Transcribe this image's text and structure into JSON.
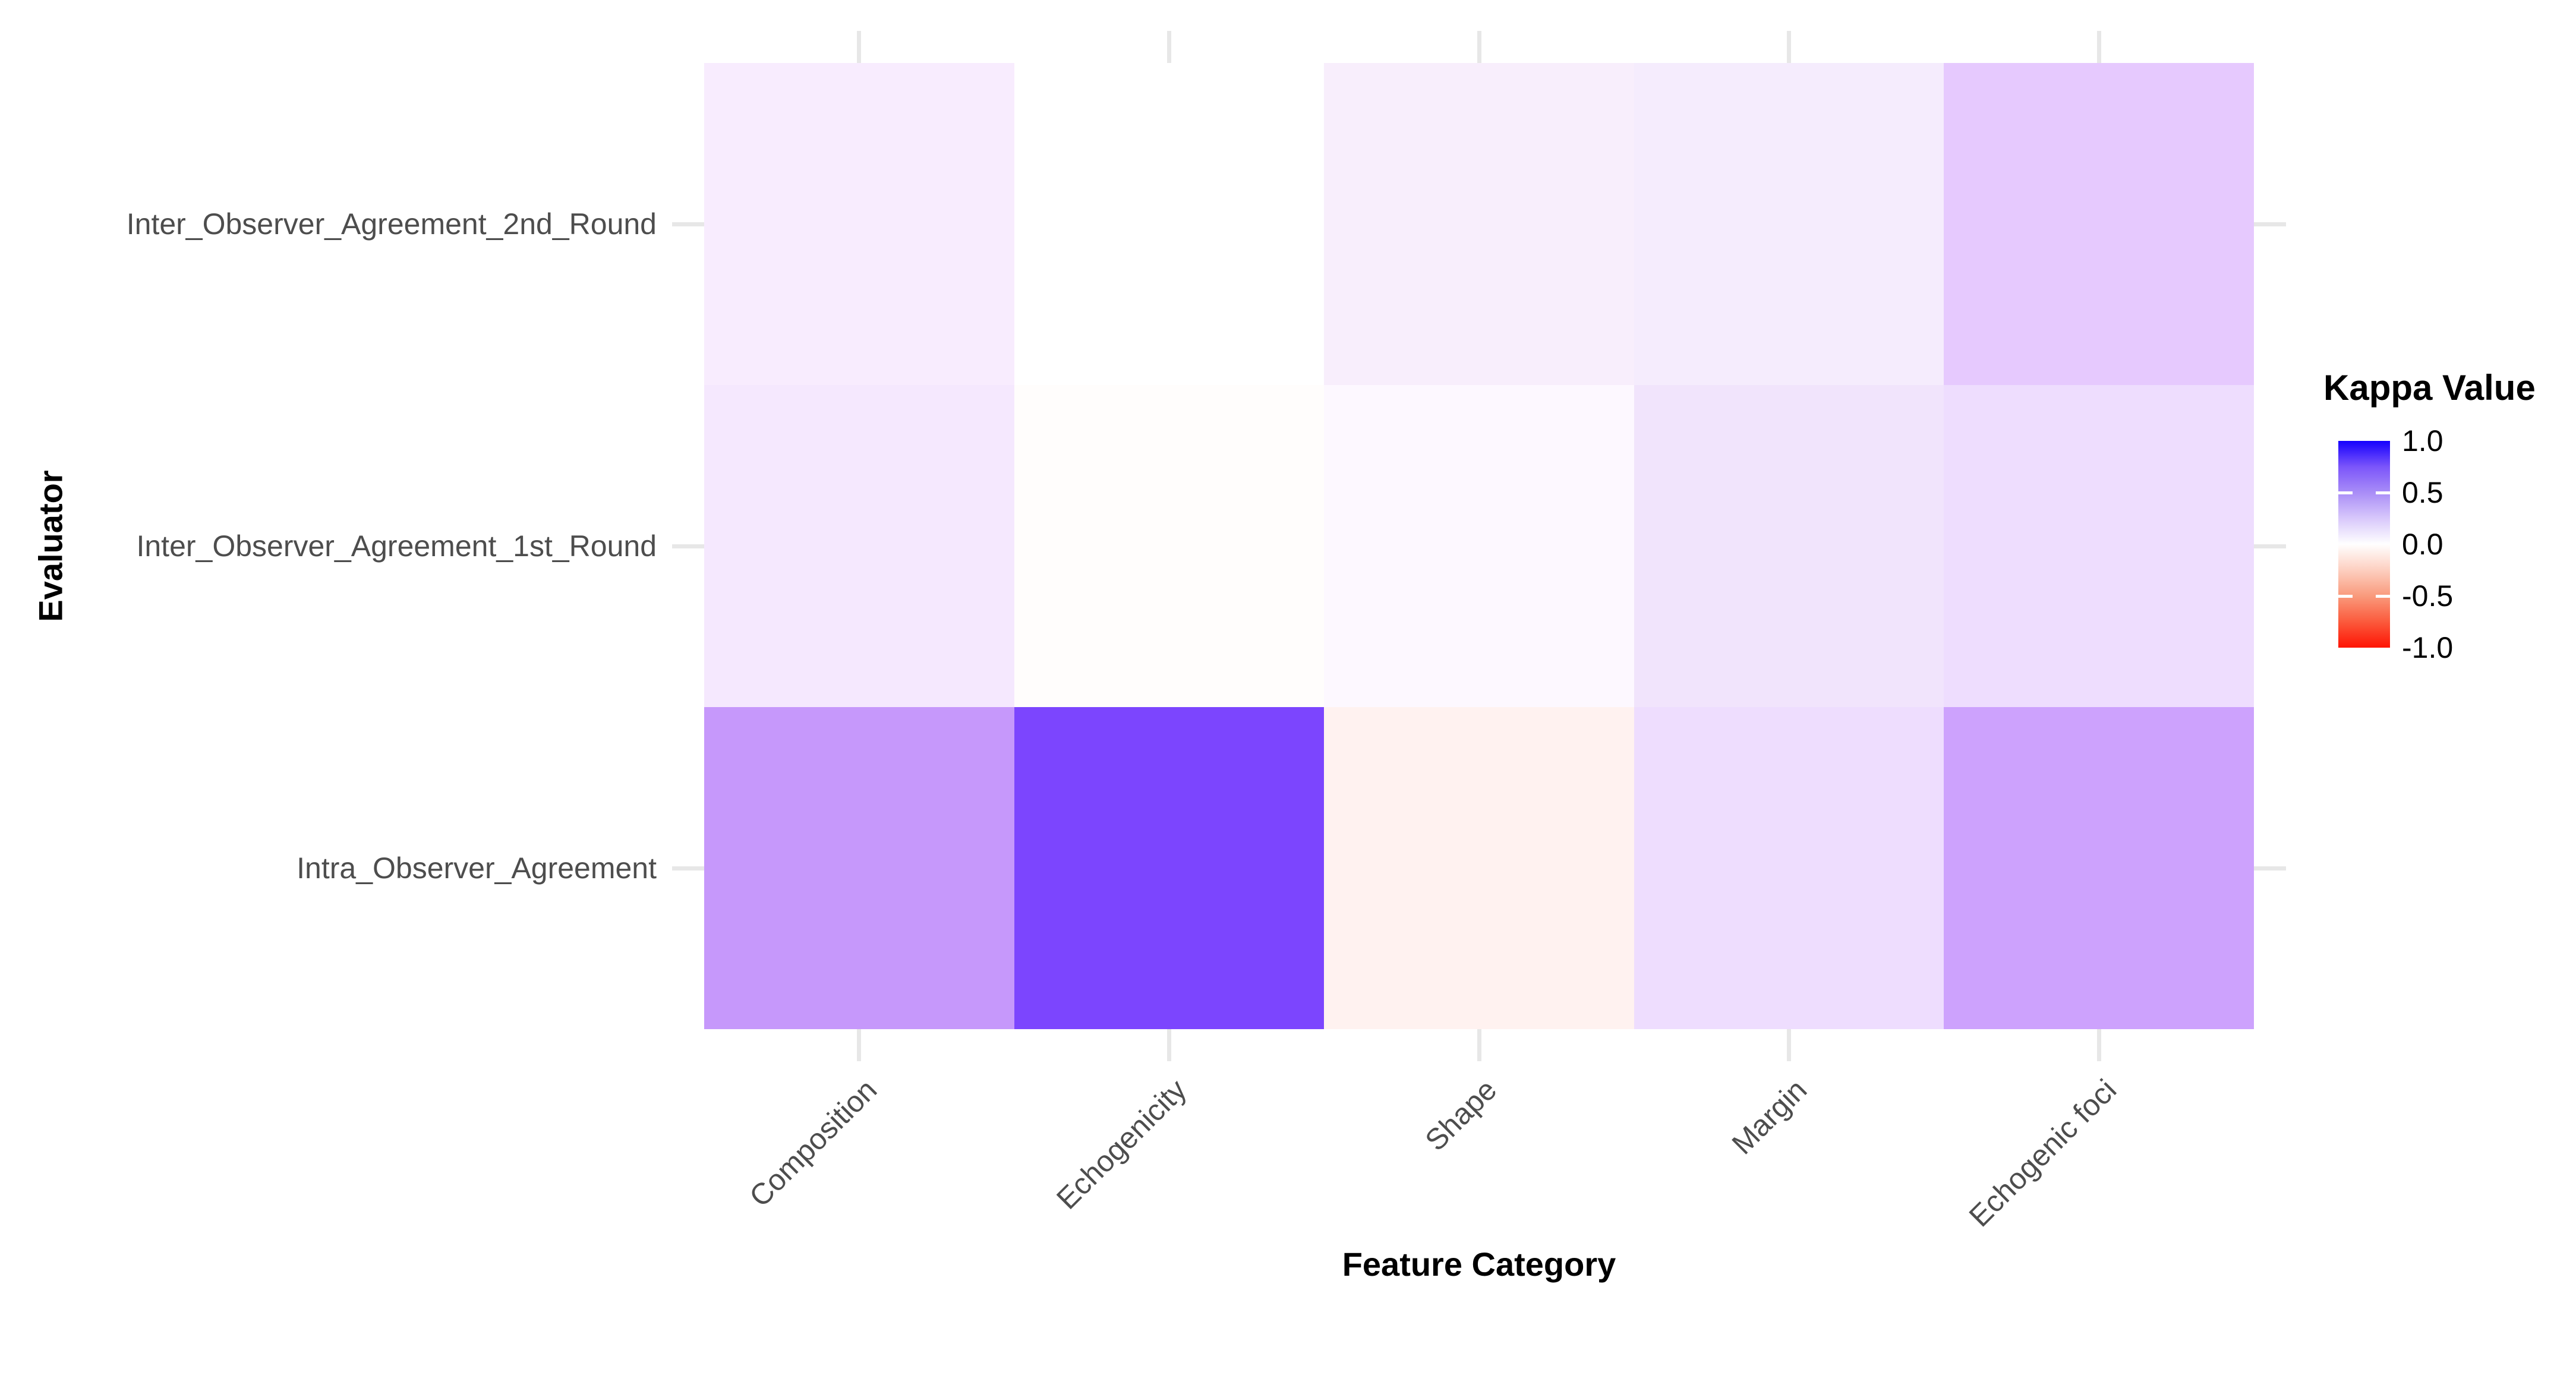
{
  "figure": {
    "background": "#ffffff",
    "axis_text_color": "#4d4d4d",
    "axis_title_color": "#000000",
    "tick_color": "#e7e7e7"
  },
  "chart_data": {
    "type": "heatmap",
    "title": "",
    "xlabel": "Feature Category",
    "ylabel": "Evaluator",
    "x_categories": [
      "Composition",
      "Echogenicity",
      "Shape",
      "Margin",
      "Echogenic foci"
    ],
    "y_categories": [
      "Inter_Observer_Agreement_2nd_Round",
      "Inter_Observer_Agreement_1st_Round",
      "Intra_Observer_Agreement"
    ],
    "series": [
      {
        "name": "Inter_Observer_Agreement_2nd_Round",
        "values": [
          0.07,
          0.0,
          0.06,
          0.07,
          0.23
        ]
      },
      {
        "name": "Inter_Observer_Agreement_1st_Round",
        "values": [
          0.09,
          -0.01,
          0.02,
          0.1,
          0.12
        ]
      },
      {
        "name": "Intra_Observer_Agreement",
        "values": [
          0.47,
          0.8,
          -0.04,
          0.12,
          0.44
        ]
      }
    ],
    "cell_colors": [
      [
        "#f8ecfe",
        "#ffffff",
        "#f8eefc",
        "#f5ecfd",
        "#e6c9fe"
      ],
      [
        "#f5e8fe",
        "#fffdfc",
        "#fdf8ff",
        "#f1e4fc",
        "#eeddfe"
      ],
      [
        "#c698fb",
        "#7c45fe",
        "#fff2f0",
        "#eeddfe",
        "#cda2fd"
      ]
    ],
    "value_range": [
      -1.0,
      1.0
    ],
    "grid": false,
    "legend": {
      "position": "right",
      "title": "Kappa Value",
      "ticks": [
        "1.0",
        "0.5",
        "0.0",
        "-0.5",
        "-1.0"
      ],
      "tick_values": [
        1.0,
        0.5,
        0.0,
        -0.5,
        -1.0
      ],
      "bar_tick_marks": [
        0.5,
        -0.5
      ],
      "gradient_stops": [
        "#1500fe",
        "#7b55fa",
        "#a98df7",
        "#d8c8fb",
        "#ffffff",
        "#fdcfc0",
        "#f99a7c",
        "#fb5a3c",
        "#fe1404"
      ],
      "high_color": "#1500fe",
      "mid_color": "#ffffff",
      "low_color": "#fe1404"
    }
  }
}
